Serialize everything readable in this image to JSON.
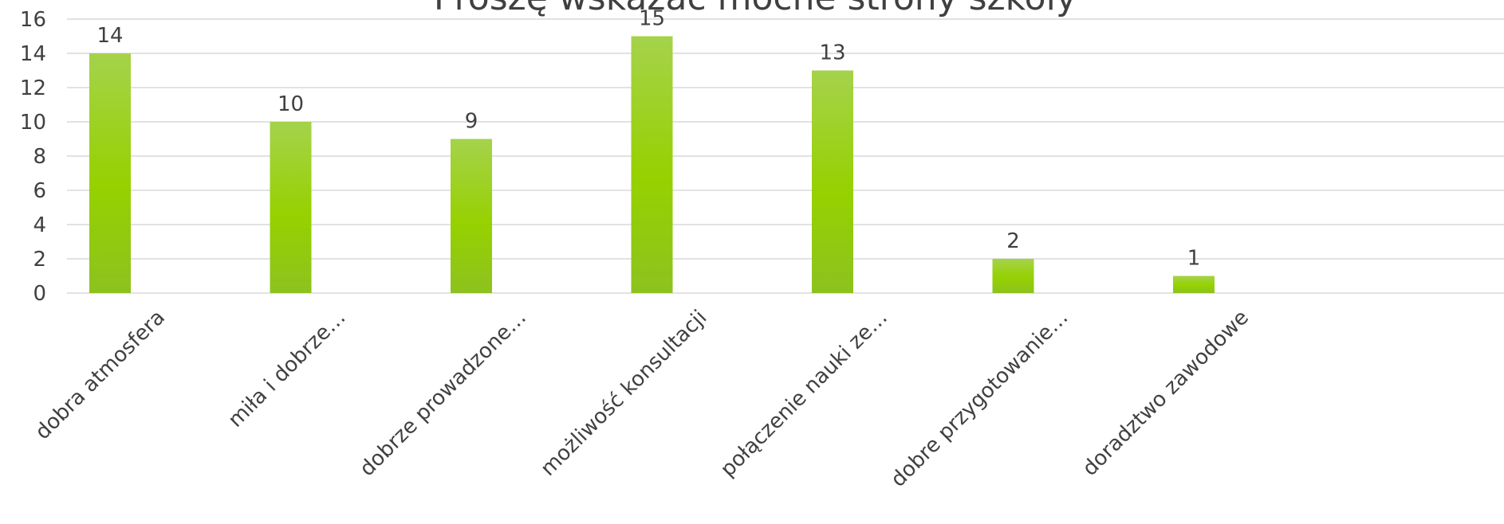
{
  "chart_data": {
    "type": "bar",
    "title": "Proszę wskazać mocne strony szkoły",
    "categories": [
      "dobra atmosfera",
      "miła i dobrze…",
      "dobrze prowadzone…",
      "możliwość konsultacji",
      "połączenie nauki ze…",
      "dobre przygotowanie…",
      "doradztwo zawodowe"
    ],
    "values": [
      14,
      10,
      9,
      15,
      13,
      2,
      1
    ],
    "ylim": [
      0,
      16
    ],
    "yticks": [
      "0",
      "2",
      "4",
      "6",
      "8",
      "10",
      "12",
      "14",
      "16"
    ],
    "grid": true,
    "legend": "none",
    "colors": {
      "bar_top": "#a5d24b",
      "bar_bottom": "#8dc21f",
      "bar_mid": "#96d100"
    }
  }
}
